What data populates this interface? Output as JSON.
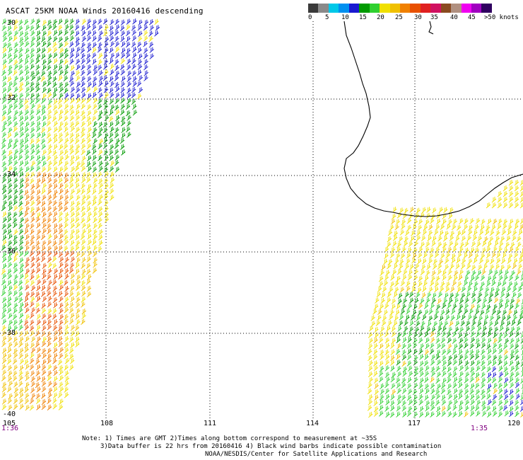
{
  "title": "ASCAT 25KM NOAA Winds 20160416 descending",
  "scale": {
    "unit_label": ">50 knots",
    "ticks": [
      "0",
      "5",
      "10",
      "15",
      "20",
      "25",
      "30",
      "35",
      "40",
      "45"
    ],
    "colors": [
      "#3a3a3a",
      "#8a8a8a",
      "#00c8e8",
      "#0090f0",
      "#1a1ad0",
      "#009a00",
      "#30d030",
      "#f0e000",
      "#f0c000",
      "#f08000",
      "#e85000",
      "#e02020",
      "#d01060",
      "#8a4a20",
      "#b09080",
      "#f000f0",
      "#a000c0",
      "#300060"
    ]
  },
  "map": {
    "lon_labels": [
      "105",
      "108",
      "111",
      "114",
      "117",
      "120"
    ],
    "lat_labels": [
      "-30",
      "-32",
      "-34",
      "-36",
      "-38",
      "-40"
    ],
    "pass_times": {
      "left": "1:36",
      "right": "1:35"
    },
    "pass_time_color": "#800080",
    "coast_color": "#000000",
    "grid_color": "#000000"
  },
  "notes": {
    "line1": "Note: 1) Times are GMT 2)Times along bottom correspond to measurement at ~35S",
    "line2": "3)Data buffer is 22 hrs from 20160416 4) Black wind barbs indicate possible contamination",
    "line3": "NOAA/NESDIS/Center for Satellite Applications and Research"
  }
}
